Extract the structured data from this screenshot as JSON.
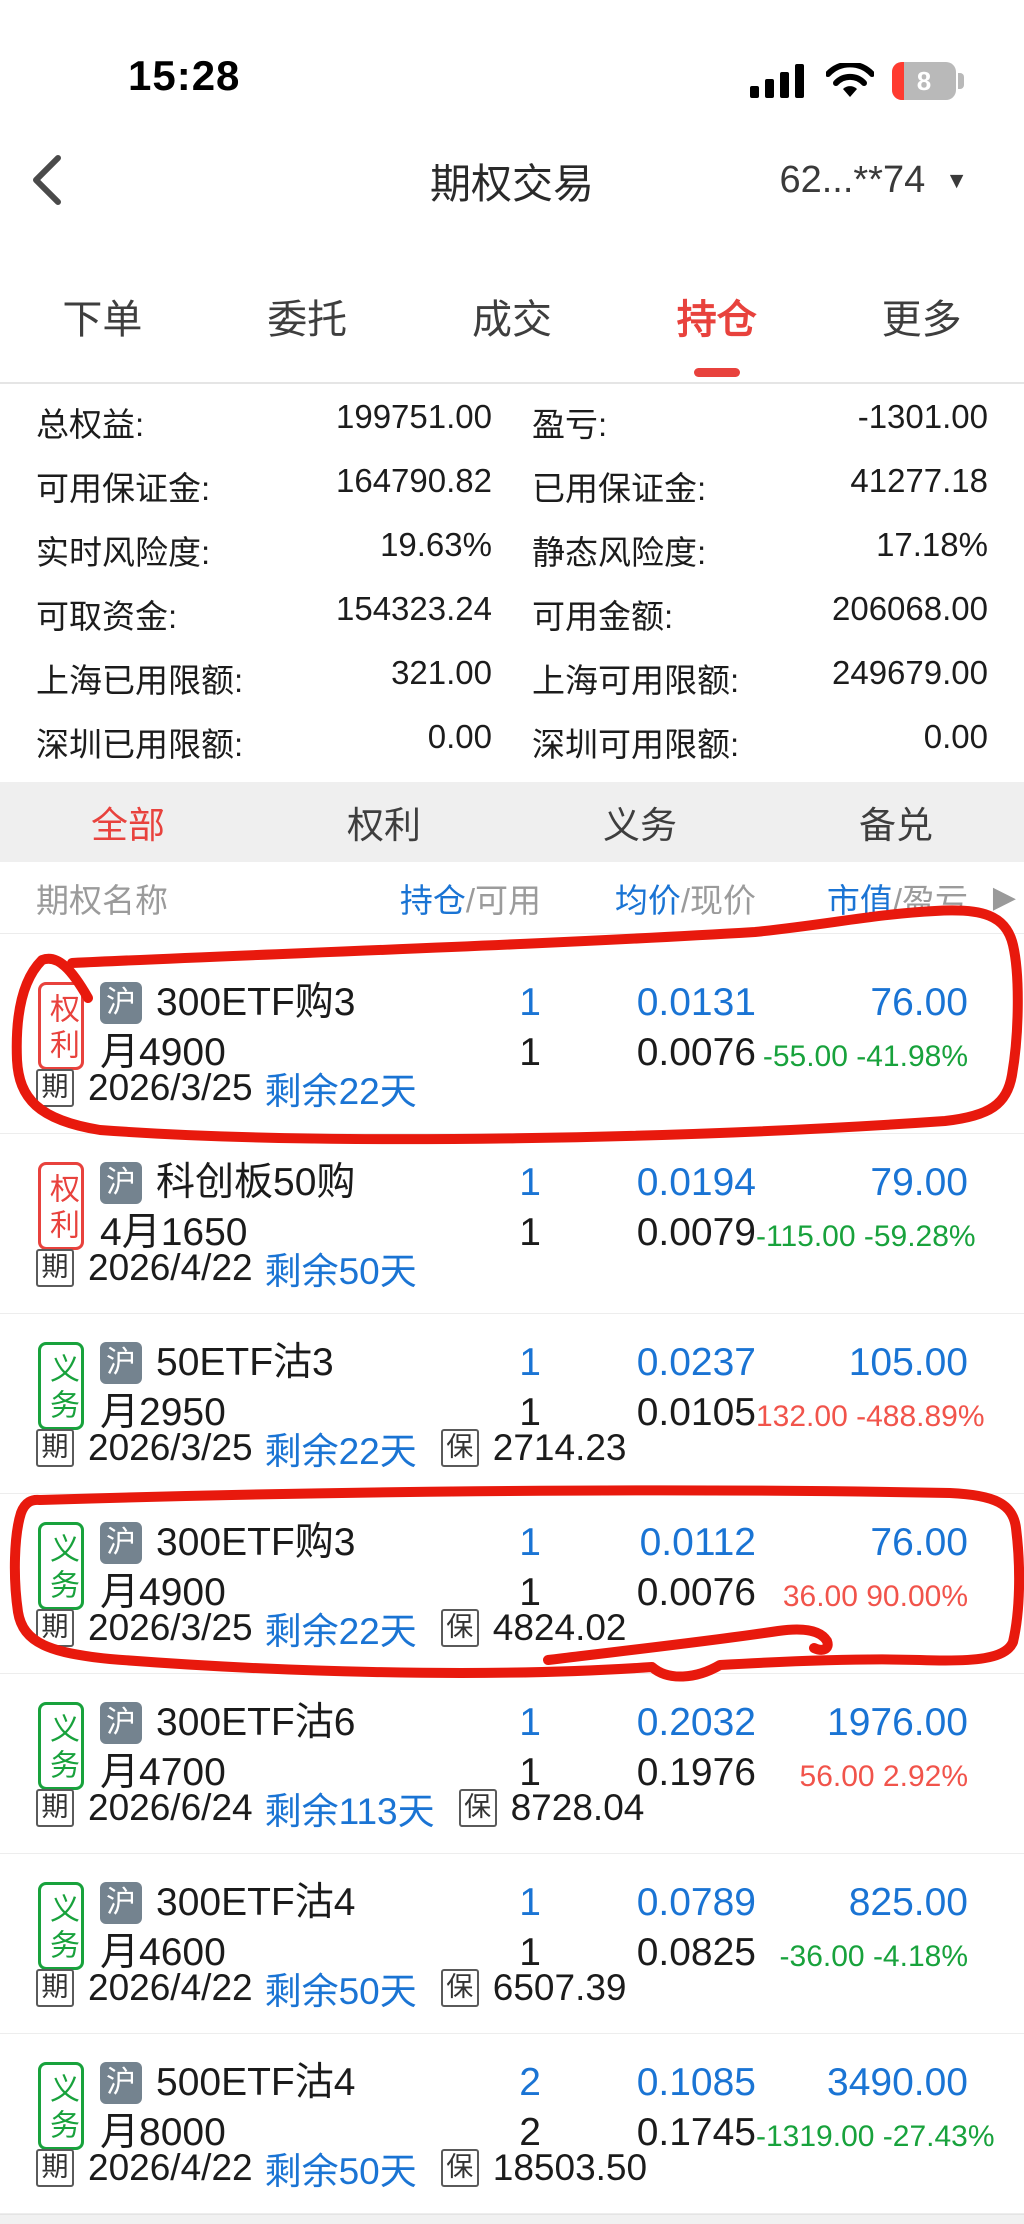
{
  "colors": {
    "accent": "#e8423d",
    "blue": "#1a74d4",
    "green": "#18a23c",
    "loss_red": "#f1544b",
    "annotation_red": "#e8190d",
    "market_badge_bg": "#74838f"
  },
  "status_bar": {
    "time": "15:28",
    "battery": "8"
  },
  "nav": {
    "title": "期权交易",
    "account": "62...**74",
    "dropdown_icon": "▼"
  },
  "top_tabs": {
    "items": [
      "下单",
      "委托",
      "成交",
      "持仓",
      "更多"
    ],
    "active_index": 3
  },
  "summary": {
    "rows": [
      [
        {
          "label": "总权益:",
          "value": "199751.00"
        },
        {
          "label": "盈亏:",
          "value": "-1301.00"
        }
      ],
      [
        {
          "label": "可用保证金:",
          "value": "164790.82"
        },
        {
          "label": "已用保证金:",
          "value": "41277.18"
        }
      ],
      [
        {
          "label": "实时风险度:",
          "value": "19.63%"
        },
        {
          "label": "静态风险度:",
          "value": "17.18%"
        }
      ],
      [
        {
          "label": "可取资金:",
          "value": "154323.24"
        },
        {
          "label": "可用金额:",
          "value": "206068.00"
        }
      ],
      [
        {
          "label": "上海已用限额:",
          "value": "321.00"
        },
        {
          "label": "上海可用限额:",
          "value": "249679.00"
        }
      ],
      [
        {
          "label": "深圳已用限额:",
          "value": "0.00"
        },
        {
          "label": "深圳可用限额:",
          "value": "0.00"
        }
      ]
    ]
  },
  "filter_tabs": {
    "items": [
      "全部",
      "权利",
      "义务",
      "备兑"
    ],
    "active_index": 0
  },
  "table_header": {
    "name": "期权名称",
    "position": "持仓",
    "available": "/可用",
    "avg": "均价",
    "last": "/现价",
    "mv": "市值",
    "pl": "/盈亏",
    "more_icon": "▶"
  },
  "labels": {
    "expiry_tag": "期",
    "margin_tag": "保"
  },
  "positions": [
    {
      "side": "权利",
      "tone": "right",
      "market": "沪",
      "name_lines": [
        "300ETF购3",
        "月4900"
      ],
      "qty": "1",
      "avail": "1",
      "avg": "0.0131",
      "last": "0.0076",
      "mv": "76.00",
      "pl": "-55.00 -41.98%",
      "pl_tone": "green",
      "expiry": "2026/3/25",
      "remain": "剩余22天",
      "margin": null,
      "annotated": true
    },
    {
      "side": "权利",
      "tone": "right",
      "market": "沪",
      "name_lines": [
        "科创板50购",
        "4月1650"
      ],
      "qty": "1",
      "avail": "1",
      "avg": "0.0194",
      "last": "0.0079",
      "mv": "79.00",
      "pl": "-115.00 -59.28%",
      "pl_tone": "green",
      "expiry": "2026/4/22",
      "remain": "剩余50天",
      "margin": null,
      "annotated": false
    },
    {
      "side": "义务",
      "tone": "duty",
      "market": "沪",
      "name_lines": [
        "50ETF沽3",
        "月2950"
      ],
      "qty": "1",
      "avail": "1",
      "avg": "0.0237",
      "last": "0.0105",
      "mv": "105.00",
      "pl": "132.00 -488.89%",
      "pl_tone": "red",
      "expiry": "2026/3/25",
      "remain": "剩余22天",
      "margin": "2714.23",
      "annotated": false
    },
    {
      "side": "义务",
      "tone": "duty",
      "market": "沪",
      "name_lines": [
        "300ETF购3",
        "月4900"
      ],
      "qty": "1",
      "avail": "1",
      "avg": "0.0112",
      "last": "0.0076",
      "mv": "76.00",
      "pl": "36.00 90.00%",
      "pl_tone": "red",
      "expiry": "2026/3/25",
      "remain": "剩余22天",
      "margin": "4824.02",
      "annotated": true
    },
    {
      "side": "义务",
      "tone": "duty",
      "market": "沪",
      "name_lines": [
        "300ETF沽6",
        "月4700"
      ],
      "qty": "1",
      "avail": "1",
      "avg": "0.2032",
      "last": "0.1976",
      "mv": "1976.00",
      "pl": "56.00 2.92%",
      "pl_tone": "red",
      "expiry": "2026/6/24",
      "remain": "剩余113天",
      "margin": "8728.04",
      "annotated": false
    },
    {
      "side": "义务",
      "tone": "duty",
      "market": "沪",
      "name_lines": [
        "300ETF沽4",
        "月4600"
      ],
      "qty": "1",
      "avail": "1",
      "avg": "0.0789",
      "last": "0.0825",
      "mv": "825.00",
      "pl": "-36.00 -4.18%",
      "pl_tone": "green",
      "expiry": "2026/4/22",
      "remain": "剩余50天",
      "margin": "6507.39",
      "annotated": false
    },
    {
      "side": "义务",
      "tone": "duty",
      "market": "沪",
      "name_lines": [
        "500ETF沽4",
        "月8000"
      ],
      "qty": "2",
      "avail": "2",
      "avg": "0.1085",
      "last": "0.1745",
      "mv": "3490.00",
      "pl": "-1319.00 -27.43%",
      "pl_tone": "green",
      "expiry": "2026/4/22",
      "remain": "剩余50天",
      "margin": "18503.50",
      "annotated": false
    }
  ]
}
